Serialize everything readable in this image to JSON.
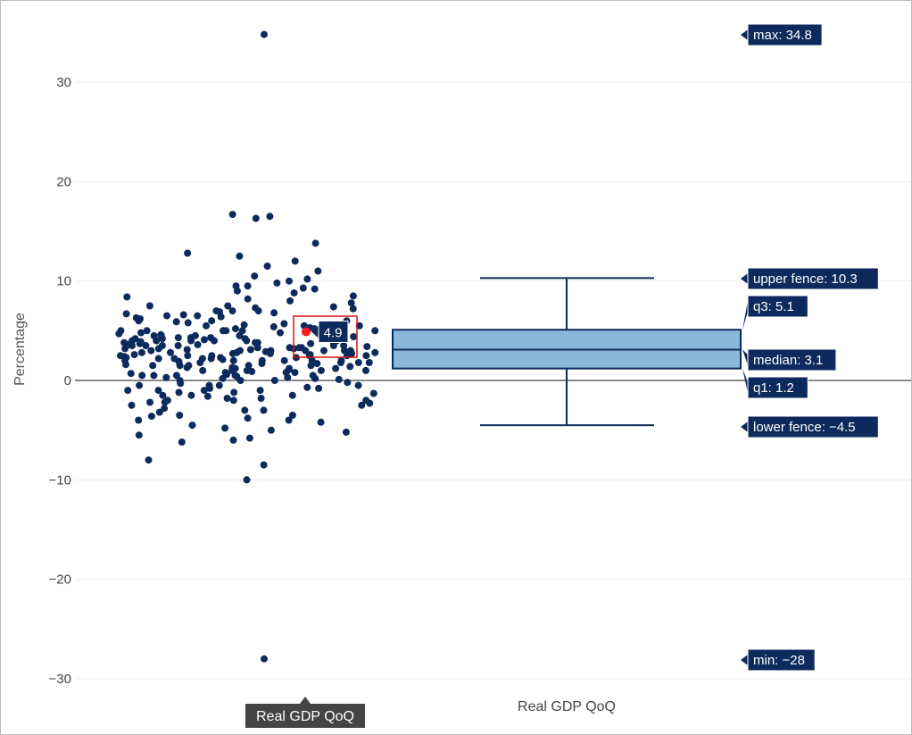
{
  "chart_data": {
    "type": "box",
    "ylabel": "Percentage",
    "ylim": [
      -32,
      35.5
    ],
    "yticks": [
      -30,
      -20,
      -10,
      0,
      10,
      20,
      30
    ],
    "ytick_labels": [
      "−30",
      "−20",
      "−10",
      "0",
      "10",
      "20",
      "30"
    ],
    "category": "Real GDP QoQ",
    "hover_category_label": "Real GDP QoQ",
    "box": {
      "min": -28,
      "lower_fence": -4.5,
      "q1": 1.2,
      "median": 3.1,
      "q3": 5.1,
      "upper_fence": 10.3,
      "max": 34.8
    },
    "box_labels": {
      "max": "max: 34.8",
      "upper_fence": "upper fence: 10.3",
      "q3": "q3: 5.1",
      "median": "median: 3.1",
      "q1": "q1: 1.2",
      "lower_fence": "lower fence: −4.5",
      "min": "min: −28"
    },
    "highlighted_point": {
      "value": 4.9,
      "label": "4.9"
    },
    "points": [
      -28,
      -10,
      -8.5,
      -8,
      -6.2,
      -6,
      -5.8,
      -5.5,
      -5.2,
      -5,
      -4.8,
      -4.5,
      -4.2,
      -4,
      -4,
      -3.8,
      -3.5,
      -3.5,
      -3.2,
      -3,
      -3,
      -2.8,
      -2.5,
      -2.5,
      -2.3,
      -2.2,
      -2,
      -2,
      -2,
      -1.8,
      -1.8,
      -1.5,
      -1.5,
      -1.5,
      -1.3,
      -1.2,
      -1.2,
      -1,
      -1,
      -1,
      -0.8,
      -0.8,
      -0.5,
      -0.5,
      -0.5,
      -0.3,
      -0.2,
      0,
      0,
      0,
      0.2,
      0.2,
      0.3,
      0.5,
      0.5,
      0.5,
      0.5,
      0.7,
      0.8,
      0.8,
      0.8,
      1,
      1,
      1,
      1,
      1.2,
      1.2,
      1.2,
      1.3,
      1.3,
      1.5,
      1.5,
      1.5,
      1.5,
      1.7,
      1.8,
      1.8,
      1.8,
      2,
      2,
      2,
      2,
      2,
      2.2,
      2.2,
      2.2,
      2.3,
      2.3,
      2.5,
      2.5,
      2.5,
      2.5,
      2.5,
      2.7,
      2.7,
      2.8,
      2.8,
      2.8,
      3,
      3,
      3,
      3,
      3,
      3,
      3.1,
      3.2,
      3.2,
      3.3,
      3.3,
      3.3,
      3.5,
      3.5,
      3.5,
      3.5,
      3.6,
      3.7,
      3.8,
      3.8,
      3.8,
      4,
      4,
      4,
      4,
      4,
      4.2,
      4.2,
      4.3,
      4.3,
      4.5,
      4.5,
      4.5,
      4.5,
      4.7,
      4.8,
      4.8,
      5,
      5,
      5,
      5,
      5,
      5.2,
      5.2,
      5.3,
      5.5,
      5.5,
      5.5,
      5.7,
      5.8,
      6,
      6,
      6,
      6.2,
      6.3,
      6.5,
      6.5,
      6.7,
      6.8,
      7,
      7,
      7,
      7.2,
      7.3,
      7.5,
      7.5,
      7.8,
      8,
      8.2,
      8.5,
      8.8,
      9,
      9.2,
      9.3,
      9.5,
      9.5,
      9.8,
      10,
      10.2,
      10.5,
      11,
      11.5,
      12,
      12.5,
      12.8,
      13.8,
      16.3,
      16.5,
      16.7,
      34.8,
      0.5,
      1,
      1.5,
      2,
      2.5,
      3,
      3.5,
      4,
      4.5,
      5,
      1.2,
      2.2,
      3.2,
      4.2,
      2.8,
      3.8,
      1.8,
      2.4,
      3.4,
      0.9,
      -1,
      -0.5,
      0.3,
      1.1,
      1.9,
      2.6,
      3.6,
      4.4,
      5.4,
      6.4,
      7.4,
      -2.2,
      -1.6,
      0.6,
      1.4,
      2.9,
      3.9,
      4.6,
      5.6,
      6.6,
      2.1,
      3.1,
      4.1,
      1.6,
      2.6,
      3.7,
      0.4,
      1.7,
      2.7,
      3.5,
      4.9,
      5.9,
      6.9,
      8.4,
      -3.6,
      -0.7,
      0.1,
      2.3,
      3.3,
      4.3
    ]
  }
}
